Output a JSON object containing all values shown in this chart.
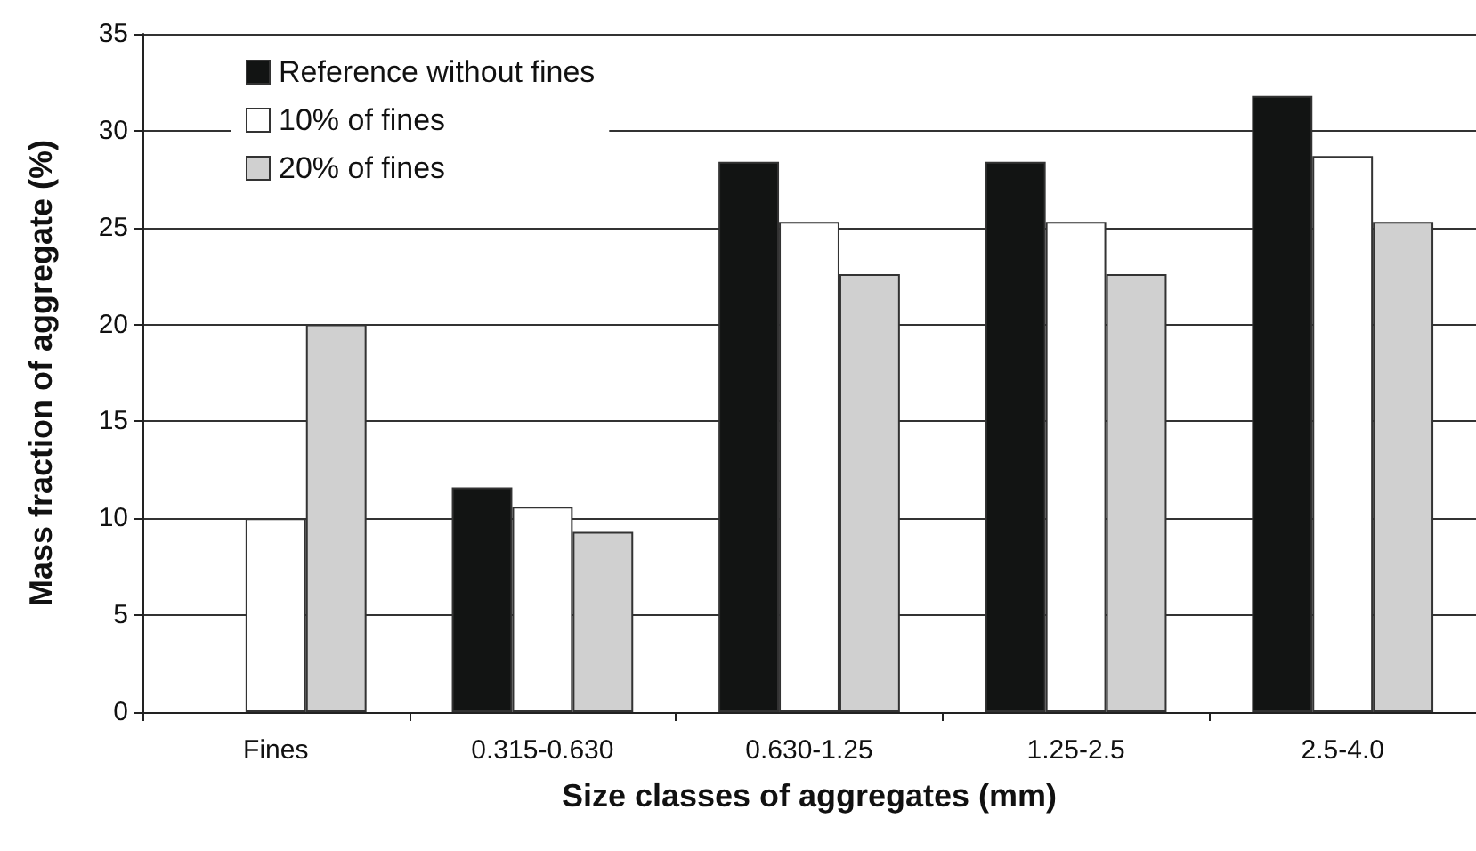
{
  "chart_data": {
    "type": "bar",
    "xlabel": "Size classes of aggregates (mm)",
    "ylabel": "Mass fraction of aggregate (%)",
    "categories": [
      "Fines",
      "0.315-0.630",
      "0.630-1.25",
      "1.25-2.5",
      "2.5-4.0"
    ],
    "series": [
      {
        "name": "Reference without fines",
        "color": "#121413",
        "values": [
          null,
          11.6,
          28.4,
          28.4,
          31.8
        ]
      },
      {
        "name": "10% of fines",
        "color": "#ffffff",
        "values": [
          10,
          10.6,
          25.3,
          25.3,
          28.7
        ]
      },
      {
        "name": "20% of fines",
        "color": "#d0d0d0",
        "values": [
          20,
          9.3,
          22.6,
          22.6,
          25.3
        ]
      }
    ],
    "ylim": [
      0,
      35
    ],
    "yticks": [
      0,
      5,
      10,
      15,
      20,
      25,
      30,
      35
    ],
    "grid": "y",
    "legend": "top left"
  }
}
